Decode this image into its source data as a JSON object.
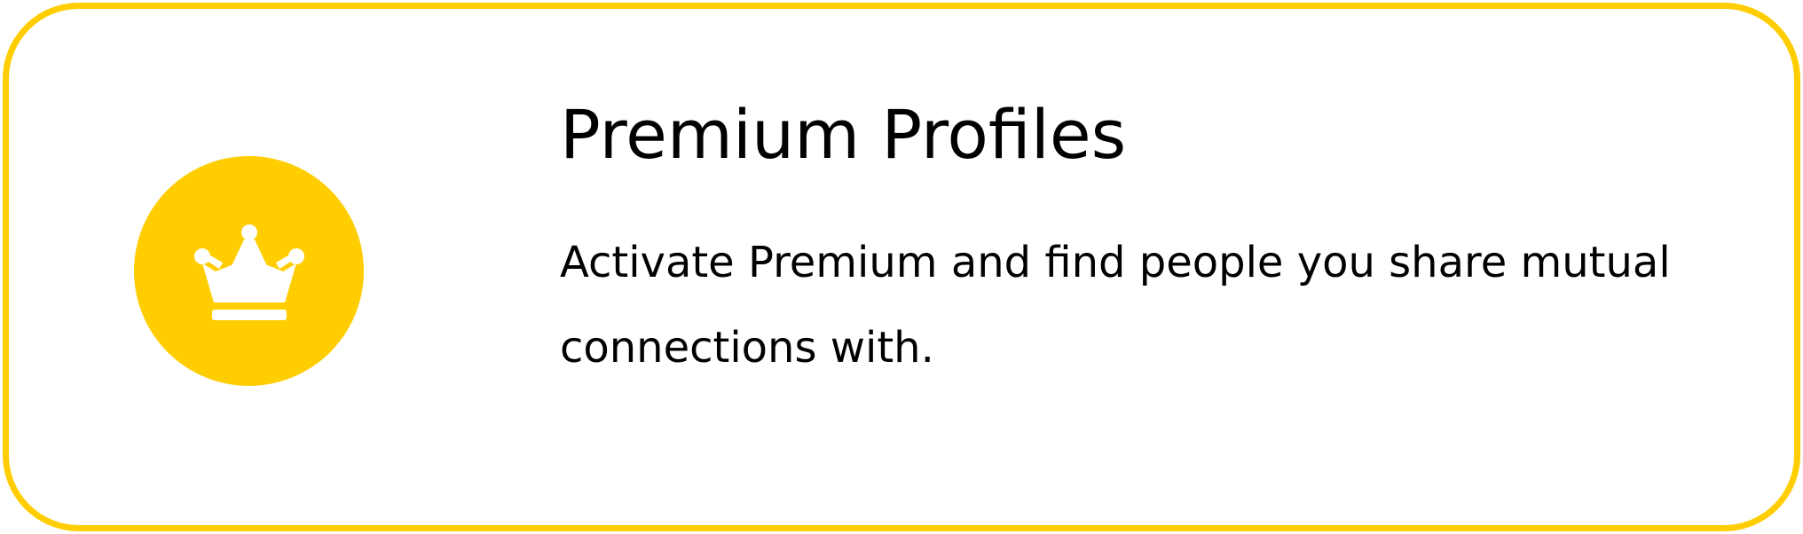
{
  "card": {
    "title": "Premium Profiles",
    "description": "Activate Premium and find people you share mutual connections with.",
    "icon": "crown-icon",
    "accent_color": "#FFCD00"
  }
}
